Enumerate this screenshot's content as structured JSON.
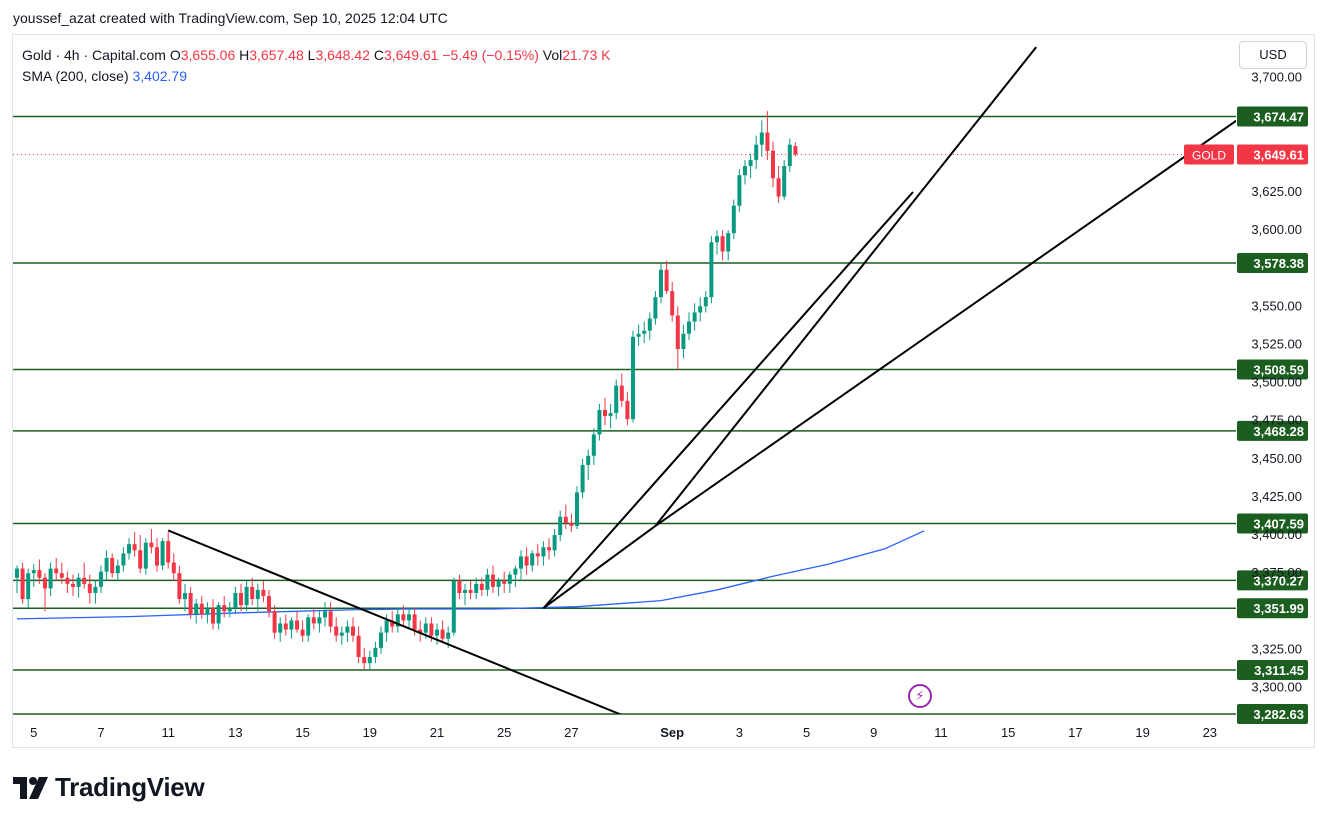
{
  "header": {
    "author_line": "youssef_azat created with TradingView.com, Sep 10, 2025 12:04 UTC"
  },
  "legend": {
    "symbol": "Gold · 4h · Capital.com",
    "open_label": "O",
    "open": "3,655.06",
    "high_label": "H",
    "high": "3,657.48",
    "low_label": "L",
    "low": "3,648.42",
    "close_label": "C",
    "close": "3,649.61",
    "change": "−5.49 (−0.15%)",
    "vol_label": "Vol",
    "vol": "21.73 K",
    "sma_label": "SMA (200, close)",
    "sma_value": "3,402.79"
  },
  "currency_button": "USD",
  "brand": {
    "name": "TradingView"
  },
  "colors": {
    "up": "#089981",
    "down": "#f23645",
    "sma": "#2962ff",
    "level": "#1b5e20",
    "label_bg": "#1b5e20",
    "price_bg": "#f23645",
    "trend": "#000000"
  },
  "chart_data": {
    "type": "candlestick",
    "title": "Gold · 4h · Capital.com",
    "ylim": [
      3282,
      3720
    ],
    "y_ticks": [
      {
        "value": 3700,
        "label": "3,700.00"
      },
      {
        "value": 3625,
        "label": "3,625.00"
      },
      {
        "value": 3600,
        "label": "3,600.00"
      },
      {
        "value": 3550,
        "label": "3,550.00"
      },
      {
        "value": 3525,
        "label": "3,525.00"
      },
      {
        "value": 3500,
        "label": "3,500.00"
      },
      {
        "value": 3475,
        "label": "3,475.00"
      },
      {
        "value": 3450,
        "label": "3,450.00"
      },
      {
        "value": 3425,
        "label": "3,425.00"
      },
      {
        "value": 3400,
        "label": "3,400.00"
      },
      {
        "value": 3375,
        "label": "3,375.00"
      },
      {
        "value": 3325,
        "label": "3,325.00"
      },
      {
        "value": 3300,
        "label": "3,300.00"
      }
    ],
    "x_ticks": [
      {
        "bar": 3,
        "label": "5"
      },
      {
        "bar": 15,
        "label": "7"
      },
      {
        "bar": 27,
        "label": "11"
      },
      {
        "bar": 39,
        "label": "13"
      },
      {
        "bar": 51,
        "label": "15"
      },
      {
        "bar": 63,
        "label": "19"
      },
      {
        "bar": 75,
        "label": "21"
      },
      {
        "bar": 87,
        "label": "25"
      },
      {
        "bar": 99,
        "label": "27"
      },
      {
        "bar": 117,
        "label": "Sep"
      },
      {
        "bar": 129,
        "label": "3"
      },
      {
        "bar": 141,
        "label": "5"
      },
      {
        "bar": 153,
        "label": "9"
      },
      {
        "bar": 165,
        "label": "11"
      },
      {
        "bar": 177,
        "label": "15"
      },
      {
        "bar": 189,
        "label": "17"
      },
      {
        "bar": 201,
        "label": "19"
      },
      {
        "bar": 213,
        "label": "23"
      }
    ],
    "horizontal_levels": [
      {
        "value": 3674.47,
        "label": "3,674.47"
      },
      {
        "value": 3578.38,
        "label": "3,578.38"
      },
      {
        "value": 3508.59,
        "label": "3,508.59"
      },
      {
        "value": 3468.28,
        "label": "3,468.28"
      },
      {
        "value": 3407.59,
        "label": "3,407.59"
      },
      {
        "value": 3370.27,
        "label": "3,370.27"
      },
      {
        "value": 3351.99,
        "label": "3,351.99"
      },
      {
        "value": 3311.45,
        "label": "3,311.45"
      },
      {
        "value": 3282.63,
        "label": "3,282.63"
      }
    ],
    "last_price": {
      "symbol": "GOLD",
      "value": 3649.61,
      "label": "3,649.61"
    },
    "trendlines": [
      {
        "from": {
          "bar": 27,
          "price": 3403
        },
        "to": {
          "bar": 108,
          "price": 3282
        }
      },
      {
        "from": {
          "bar": 94,
          "price": 3352
        },
        "to": {
          "bar": 114,
          "price": 3406
        }
      },
      {
        "from": {
          "bar": 114,
          "price": 3406
        },
        "to": {
          "bar": 182,
          "price": 3720
        }
      },
      {
        "from": {
          "bar": 114,
          "price": 3406
        },
        "to": {
          "bar": 219,
          "price": 3675
        }
      },
      {
        "from": {
          "bar": 94,
          "price": 3352
        },
        "to": {
          "bar": 160,
          "price": 3625
        }
      }
    ],
    "sma_series": {
      "name": "SMA (200, close)",
      "points": [
        [
          0,
          3345
        ],
        [
          20,
          3346.5
        ],
        [
          40,
          3349
        ],
        [
          60,
          3351
        ],
        [
          70,
          3351.5
        ],
        [
          85,
          3351.5
        ],
        [
          100,
          3353
        ],
        [
          115,
          3357
        ],
        [
          125,
          3364
        ],
        [
          135,
          3373
        ],
        [
          145,
          3381
        ],
        [
          155,
          3391
        ],
        [
          162,
          3402.79
        ]
      ]
    },
    "ohlc": [
      [
        3372,
        3380,
        3362,
        3378
      ],
      [
        3378,
        3382,
        3355,
        3358
      ],
      [
        3358,
        3378,
        3352,
        3375
      ],
      [
        3375,
        3381,
        3366,
        3377
      ],
      [
        3377,
        3384,
        3368,
        3372
      ],
      [
        3372,
        3375,
        3350,
        3365
      ],
      [
        3365,
        3382,
        3360,
        3378
      ],
      [
        3378,
        3385,
        3370,
        3375
      ],
      [
        3375,
        3382,
        3368,
        3372
      ],
      [
        3372,
        3376,
        3362,
        3368
      ],
      [
        3368,
        3374,
        3360,
        3366
      ],
      [
        3366,
        3375,
        3359,
        3372
      ],
      [
        3372,
        3382,
        3365,
        3368
      ],
      [
        3368,
        3374,
        3355,
        3362
      ],
      [
        3362,
        3370,
        3355,
        3366
      ],
      [
        3366,
        3380,
        3362,
        3376
      ],
      [
        3376,
        3390,
        3370,
        3385
      ],
      [
        3385,
        3388,
        3372,
        3375
      ],
      [
        3375,
        3384,
        3370,
        3380
      ],
      [
        3380,
        3392,
        3376,
        3388
      ],
      [
        3388,
        3398,
        3384,
        3394
      ],
      [
        3394,
        3402,
        3386,
        3390
      ],
      [
        3390,
        3400,
        3375,
        3378
      ],
      [
        3378,
        3398,
        3374,
        3395
      ],
      [
        3395,
        3404,
        3388,
        3392
      ],
      [
        3392,
        3398,
        3376,
        3380
      ],
      [
        3380,
        3398,
        3377,
        3396
      ],
      [
        3396,
        3402,
        3378,
        3382
      ],
      [
        3382,
        3388,
        3370,
        3375
      ],
      [
        3375,
        3380,
        3355,
        3358
      ],
      [
        3358,
        3368,
        3350,
        3362
      ],
      [
        3362,
        3366,
        3345,
        3348
      ],
      [
        3348,
        3358,
        3342,
        3355
      ],
      [
        3355,
        3360,
        3345,
        3348
      ],
      [
        3348,
        3356,
        3342,
        3352
      ],
      [
        3352,
        3358,
        3338,
        3342
      ],
      [
        3342,
        3356,
        3338,
        3354
      ],
      [
        3354,
        3360,
        3346,
        3350
      ],
      [
        3350,
        3356,
        3346,
        3352
      ],
      [
        3352,
        3366,
        3348,
        3362
      ],
      [
        3362,
        3368,
        3350,
        3354
      ],
      [
        3354,
        3370,
        3350,
        3366
      ],
      [
        3366,
        3372,
        3354,
        3358
      ],
      [
        3358,
        3368,
        3350,
        3364
      ],
      [
        3364,
        3370,
        3356,
        3360
      ],
      [
        3360,
        3364,
        3346,
        3350
      ],
      [
        3350,
        3354,
        3332,
        3336
      ],
      [
        3336,
        3346,
        3330,
        3342
      ],
      [
        3342,
        3348,
        3334,
        3338
      ],
      [
        3338,
        3346,
        3332,
        3344
      ],
      [
        3344,
        3350,
        3336,
        3338
      ],
      [
        3338,
        3344,
        3330,
        3334
      ],
      [
        3334,
        3348,
        3330,
        3346
      ],
      [
        3346,
        3352,
        3338,
        3342
      ],
      [
        3342,
        3350,
        3336,
        3346
      ],
      [
        3346,
        3356,
        3340,
        3350
      ],
      [
        3350,
        3356,
        3336,
        3340
      ],
      [
        3340,
        3346,
        3330,
        3334
      ],
      [
        3334,
        3340,
        3328,
        3336
      ],
      [
        3336,
        3344,
        3330,
        3340
      ],
      [
        3340,
        3346,
        3330,
        3334
      ],
      [
        3334,
        3340,
        3316,
        3320
      ],
      [
        3320,
        3326,
        3312,
        3316
      ],
      [
        3316,
        3324,
        3312,
        3320
      ],
      [
        3320,
        3330,
        3316,
        3326
      ],
      [
        3326,
        3340,
        3322,
        3336
      ],
      [
        3336,
        3348,
        3330,
        3344
      ],
      [
        3344,
        3350,
        3336,
        3340
      ],
      [
        3340,
        3352,
        3336,
        3348
      ],
      [
        3348,
        3354,
        3340,
        3344
      ],
      [
        3344,
        3352,
        3338,
        3348
      ],
      [
        3348,
        3352,
        3334,
        3338
      ],
      [
        3338,
        3344,
        3330,
        3336
      ],
      [
        3336,
        3346,
        3332,
        3342
      ],
      [
        3342,
        3346,
        3330,
        3334
      ],
      [
        3334,
        3342,
        3328,
        3338
      ],
      [
        3338,
        3344,
        3330,
        3332
      ],
      [
        3332,
        3340,
        3326,
        3336
      ],
      [
        3336,
        3372,
        3334,
        3370
      ],
      [
        3370,
        3374,
        3358,
        3362
      ],
      [
        3362,
        3368,
        3354,
        3364
      ],
      [
        3364,
        3370,
        3358,
        3362
      ],
      [
        3362,
        3372,
        3358,
        3368
      ],
      [
        3368,
        3372,
        3360,
        3364
      ],
      [
        3364,
        3378,
        3360,
        3374
      ],
      [
        3374,
        3380,
        3362,
        3366
      ],
      [
        3366,
        3372,
        3360,
        3370
      ],
      [
        3370,
        3376,
        3362,
        3368
      ],
      [
        3368,
        3376,
        3362,
        3374
      ],
      [
        3374,
        3380,
        3366,
        3378
      ],
      [
        3378,
        3390,
        3370,
        3386
      ],
      [
        3386,
        3392,
        3374,
        3380
      ],
      [
        3380,
        3390,
        3376,
        3388
      ],
      [
        3388,
        3394,
        3380,
        3386
      ],
      [
        3386,
        3396,
        3380,
        3392
      ],
      [
        3392,
        3398,
        3384,
        3390
      ],
      [
        3390,
        3404,
        3386,
        3400
      ],
      [
        3400,
        3416,
        3396,
        3412
      ],
      [
        3412,
        3420,
        3404,
        3408
      ],
      [
        3408,
        3414,
        3402,
        3406
      ],
      [
        3406,
        3432,
        3404,
        3428
      ],
      [
        3428,
        3450,
        3424,
        3446
      ],
      [
        3446,
        3456,
        3436,
        3452
      ],
      [
        3452,
        3470,
        3446,
        3466
      ],
      [
        3466,
        3486,
        3462,
        3482
      ],
      [
        3482,
        3490,
        3472,
        3478
      ],
      [
        3478,
        3486,
        3470,
        3480
      ],
      [
        3480,
        3502,
        3476,
        3498
      ],
      [
        3498,
        3506,
        3484,
        3488
      ],
      [
        3488,
        3494,
        3472,
        3476
      ],
      [
        3476,
        3534,
        3474,
        3530
      ],
      [
        3530,
        3538,
        3524,
        3532
      ],
      [
        3532,
        3540,
        3526,
        3534
      ],
      [
        3534,
        3546,
        3528,
        3542
      ],
      [
        3542,
        3560,
        3538,
        3556
      ],
      [
        3556,
        3578,
        3552,
        3574
      ],
      [
        3574,
        3580,
        3558,
        3560
      ],
      [
        3560,
        3566,
        3540,
        3544
      ],
      [
        3544,
        3550,
        3508,
        3522
      ],
      [
        3522,
        3538,
        3516,
        3532
      ],
      [
        3532,
        3546,
        3528,
        3540
      ],
      [
        3540,
        3552,
        3534,
        3546
      ],
      [
        3546,
        3556,
        3540,
        3550
      ],
      [
        3550,
        3560,
        3546,
        3556
      ],
      [
        3556,
        3596,
        3552,
        3592
      ],
      [
        3592,
        3600,
        3584,
        3596
      ],
      [
        3596,
        3600,
        3580,
        3586
      ],
      [
        3586,
        3600,
        3580,
        3598
      ],
      [
        3598,
        3620,
        3594,
        3616
      ],
      [
        3616,
        3640,
        3612,
        3636
      ],
      [
        3636,
        3646,
        3630,
        3642
      ],
      [
        3642,
        3650,
        3634,
        3646
      ],
      [
        3646,
        3662,
        3640,
        3656
      ],
      [
        3656,
        3672,
        3648,
        3664
      ],
      [
        3664,
        3678,
        3646,
        3652
      ],
      [
        3652,
        3658,
        3628,
        3634
      ],
      [
        3634,
        3642,
        3618,
        3622
      ],
      [
        3622,
        3646,
        3620,
        3642
      ],
      [
        3642,
        3660,
        3638,
        3656
      ],
      [
        3655.06,
        3657.48,
        3648.42,
        3649.61
      ]
    ]
  }
}
